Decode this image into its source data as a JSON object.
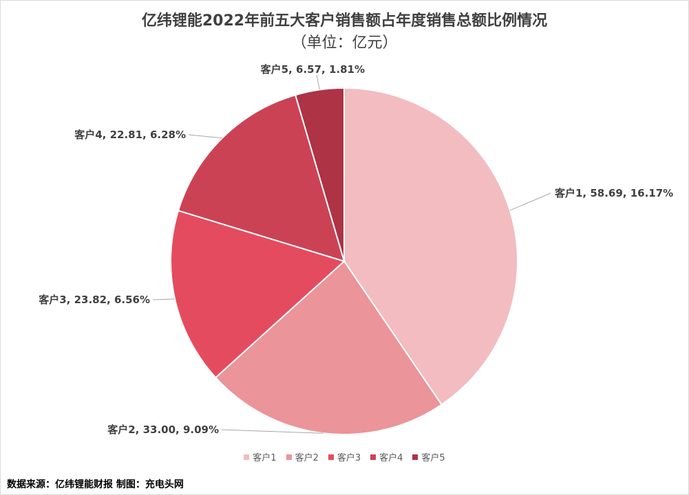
{
  "title": "亿纬锂能2022年前五大客户销售额占年度销售总额比例情况",
  "subtitle": "（单位：亿元）",
  "source": "数据来源：亿纬锂能财报  制图：充电头网",
  "chart_data": {
    "type": "pie",
    "title": "亿纬锂能2022年前五大客户销售额占年度销售总额比例情况",
    "subtitle": "（单位：亿元）",
    "legend_position": "bottom",
    "slices": [
      {
        "label": "客户1",
        "value": 58.69,
        "percent": "16.17%",
        "color": "#f2bcc1",
        "data_label": "客户1, 58.69, 16.17%"
      },
      {
        "label": "客户2",
        "value": 33.0,
        "percent": "9.09%",
        "color": "#eb9499",
        "data_label": "客户2, 33.00, 9.09%"
      },
      {
        "label": "客户3",
        "value": 23.82,
        "percent": "6.56%",
        "color": "#e54b5f",
        "data_label": "客户3, 23.82, 6.56%"
      },
      {
        "label": "客户4",
        "value": 22.81,
        "percent": "6.28%",
        "color": "#cc4255",
        "data_label": "客户4, 22.81, 6.28%"
      },
      {
        "label": "客户5",
        "value": 6.57,
        "percent": "1.81%",
        "color": "#ad3345",
        "data_label": "客户5, 6.57, 1.81%"
      }
    ]
  }
}
